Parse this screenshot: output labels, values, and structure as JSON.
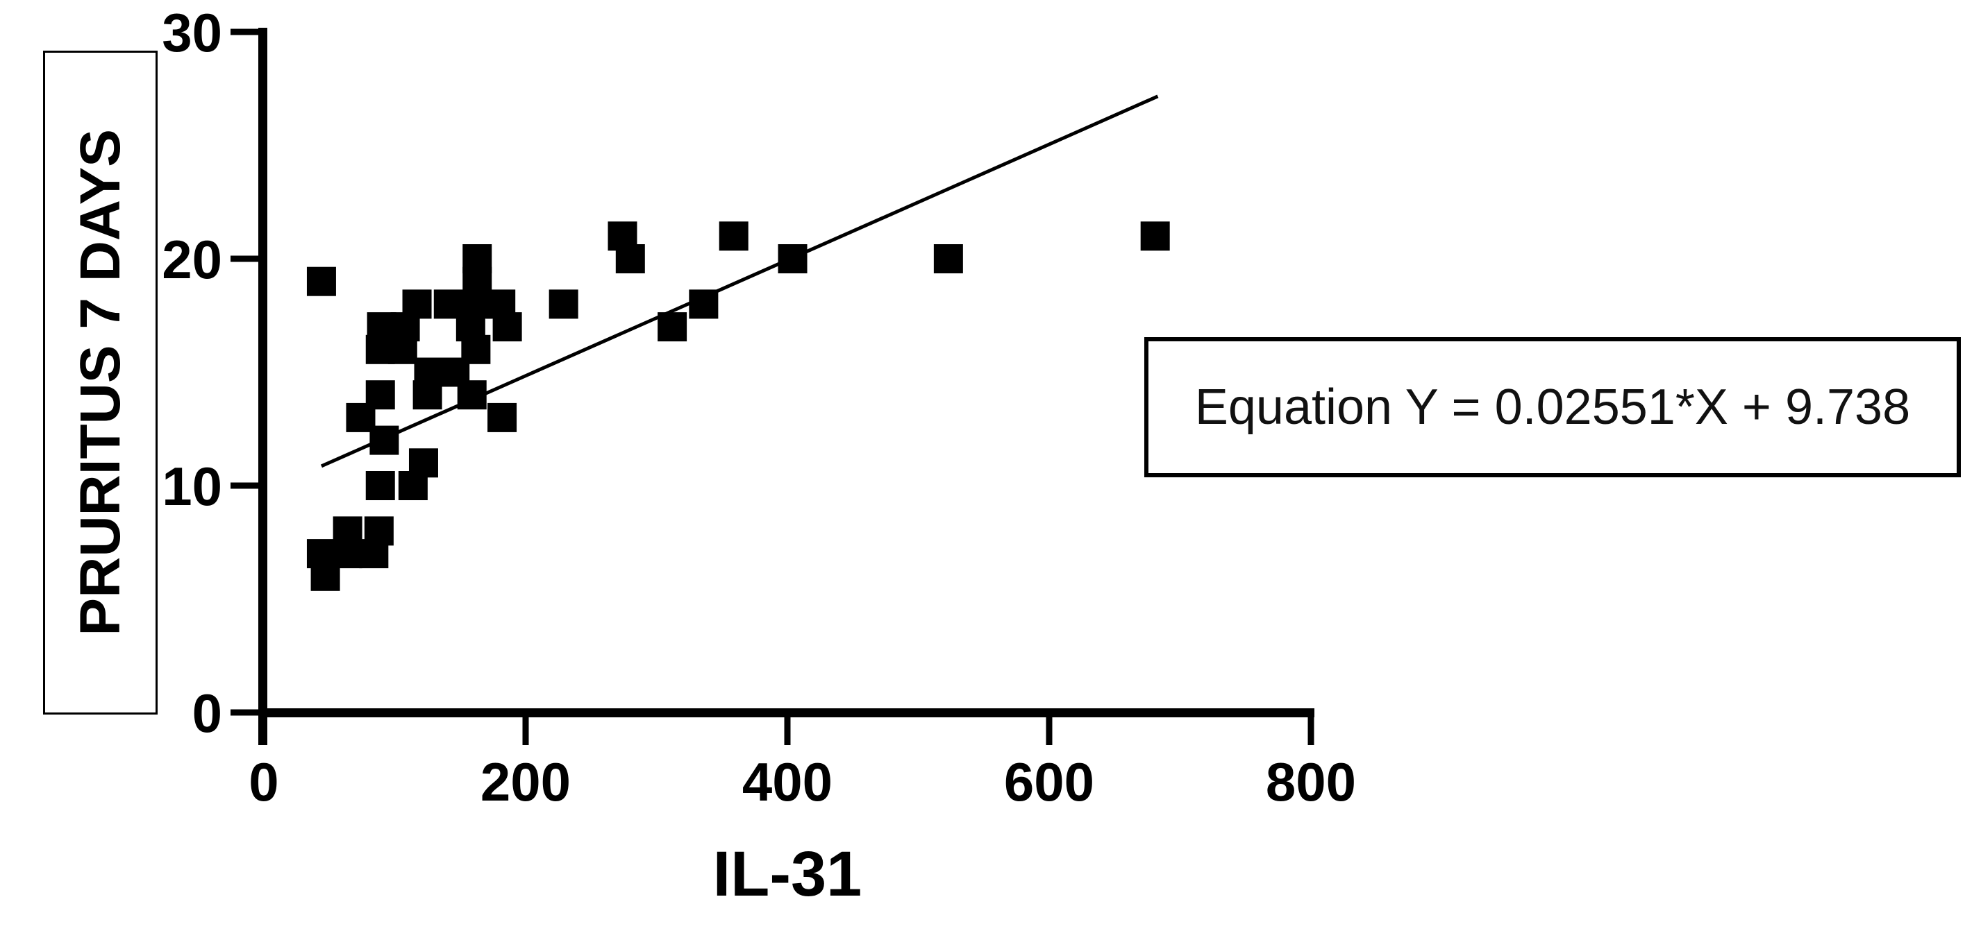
{
  "figure": {
    "background_color": "#ffffff",
    "ink_color": "#000000"
  },
  "equation_box": {
    "text": "Equation Y = 0.02551*X + 9.738"
  },
  "chart_data": {
    "type": "scatter",
    "title": "",
    "xlabel": "IL-31",
    "ylabel": "PRURITUS 7 DAYS",
    "xlim": [
      0,
      800
    ],
    "ylim": [
      0,
      30
    ],
    "xticks": [
      0,
      200,
      400,
      600,
      800
    ],
    "yticks": [
      0,
      10,
      20,
      30
    ],
    "grid": false,
    "legend_position": "none",
    "marker": "filled-square",
    "marker_color": "#000000",
    "n_points": 40,
    "points": [
      [
        44,
        19
      ],
      [
        117,
        18
      ],
      [
        141,
        18
      ],
      [
        163,
        20
      ],
      [
        163,
        19
      ],
      [
        163,
        18
      ],
      [
        158,
        17
      ],
      [
        162,
        16
      ],
      [
        146,
        15
      ],
      [
        159,
        14
      ],
      [
        181,
        18
      ],
      [
        186,
        17
      ],
      [
        229,
        18
      ],
      [
        90,
        17
      ],
      [
        108,
        17
      ],
      [
        89,
        16
      ],
      [
        106,
        16
      ],
      [
        126,
        15
      ],
      [
        125,
        14
      ],
      [
        89,
        14
      ],
      [
        74,
        13
      ],
      [
        92,
        12
      ],
      [
        122,
        11
      ],
      [
        89,
        10
      ],
      [
        114,
        10
      ],
      [
        182,
        13
      ],
      [
        64,
        8
      ],
      [
        88,
        8
      ],
      [
        44,
        7
      ],
      [
        64,
        7
      ],
      [
        84,
        7
      ],
      [
        47,
        6
      ],
      [
        274,
        21
      ],
      [
        280,
        20
      ],
      [
        312,
        17
      ],
      [
        336,
        18
      ],
      [
        359,
        21
      ],
      [
        404,
        20
      ],
      [
        523,
        20
      ],
      [
        681,
        21
      ]
    ],
    "trendline": {
      "slope": 0.02551,
      "intercept": 9.738,
      "x_start": 44,
      "x_end": 683
    },
    "annotation": "Equation Y = 0.02551*X + 9.738"
  }
}
